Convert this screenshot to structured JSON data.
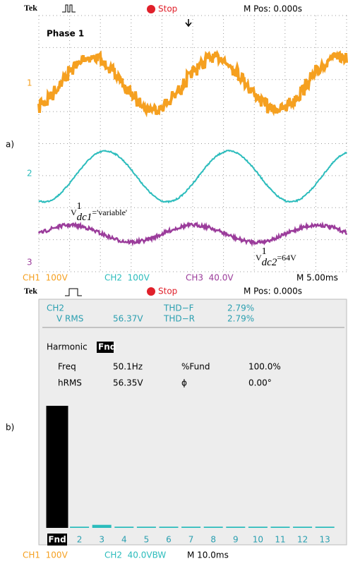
{
  "labels": [
    "a)",
    "b)"
  ],
  "scope_a": {
    "header": {
      "brand": "Tek",
      "status": "Stop",
      "position": "M Pos: 0.000s"
    },
    "title": "Phase 1",
    "channel_markers": [
      "1",
      "2",
      "3"
    ],
    "annotations": [
      {
        "base": "V",
        "sup": "1",
        "sub": "dc1",
        "rest": "='variable'"
      },
      {
        "base": "V",
        "sup": "1",
        "sub": "dc2",
        "rest": "=64V"
      }
    ],
    "footer": [
      "CH1  100V",
      "CH2  100V",
      "CH3  40.0V",
      "M 5.00ms"
    ]
  },
  "scope_b": {
    "header": {
      "brand": "Tek",
      "status": "Stop",
      "position": "M Pos: 0.000s"
    },
    "readout": {
      "channel": "CH2",
      "thd_f_label": "THD−F",
      "thd_f": "2.79%",
      "vrms_label": "V RMS",
      "vrms": "56.37V",
      "thd_r_label": "THD−R",
      "thd_r": "2.79%",
      "harmonic_label": "Harmonic",
      "harmonic_sel": "Fnd",
      "freq_label": "Freq",
      "freq": "50.1Hz",
      "fund_label": "%Fund",
      "fund": "100.0%",
      "hrms_label": "hRMS",
      "hrms": "56.35V",
      "phase_label": "ϕ",
      "phase": "0.00°"
    },
    "harmonics": {
      "categories": [
        "Fnd",
        "2",
        "3",
        "4",
        "5",
        "6",
        "7",
        "8",
        "9",
        "10",
        "11",
        "12",
        "13"
      ],
      "values": [
        100,
        1,
        2.5,
        1,
        1,
        1,
        1,
        1,
        1,
        1,
        1,
        1,
        1
      ]
    },
    "footer": [
      "CH1  100V",
      "CH2  40.0VBW",
      "M 10.0ms"
    ]
  }
}
